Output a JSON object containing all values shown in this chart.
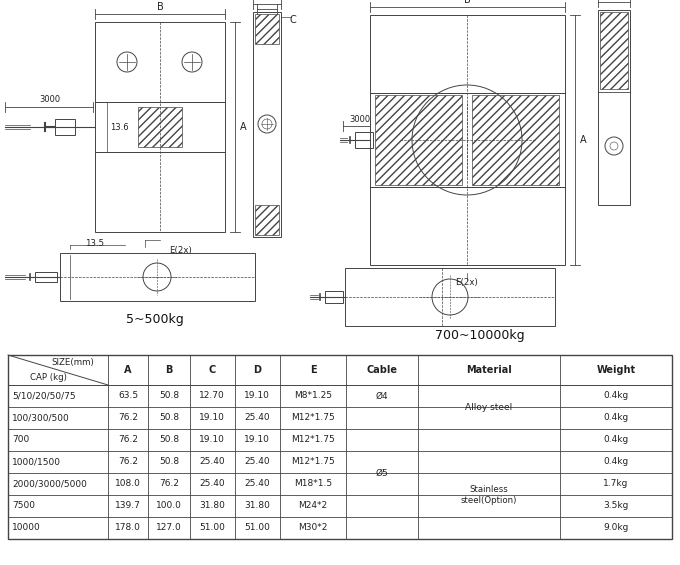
{
  "bg_color": "#ffffff",
  "lc": "#444444",
  "table_rows": [
    [
      "5/10/20/50/75",
      "63.5",
      "50.8",
      "12.70",
      "19.10",
      "M8*1.25",
      "0.4kg"
    ],
    [
      "100/300/500",
      "76.2",
      "50.8",
      "19.10",
      "25.40",
      "M12*1.75",
      "0.4kg"
    ],
    [
      "700",
      "76.2",
      "50.8",
      "19.10",
      "19.10",
      "M12*1.75",
      "0.4kg"
    ],
    [
      "1000/1500",
      "76.2",
      "50.8",
      "25.40",
      "25.40",
      "M12*1.75",
      "0.4kg"
    ],
    [
      "2000/3000/5000",
      "108.0",
      "76.2",
      "25.40",
      "25.40",
      "M18*1.5",
      "1.7kg"
    ],
    [
      "7500",
      "139.7",
      "100.0",
      "31.80",
      "31.80",
      "M24*2",
      "3.5kg"
    ],
    [
      "10000",
      "178.0",
      "127.0",
      "51.00",
      "51.00",
      "M30*2",
      "9.0kg"
    ]
  ]
}
